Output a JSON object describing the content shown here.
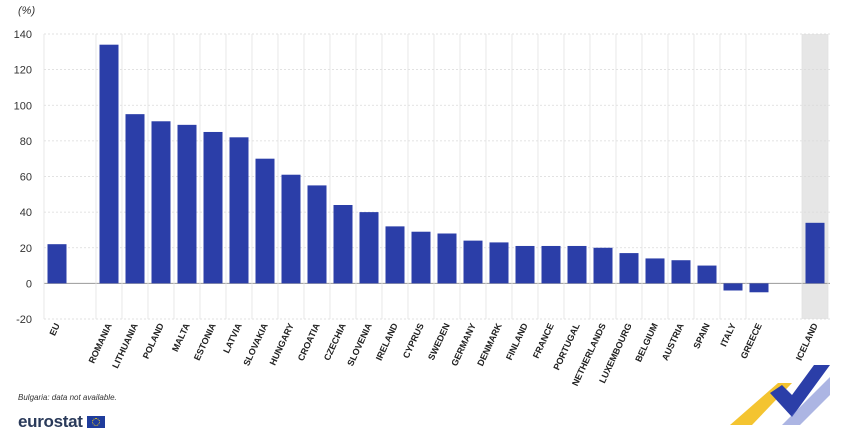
{
  "chart_data": {
    "type": "bar",
    "unit_label": "(%)",
    "categories": [
      "EU",
      "ROMANIA",
      "LITHUANIA",
      "POLAND",
      "MALTA",
      "ESTONIA",
      "LATVIA",
      "SLOVAKIA",
      "HUNGARY",
      "CROATIA",
      "CZECHIA",
      "SLOVENIA",
      "IRELAND",
      "CYPRUS",
      "SWEDEN",
      "GERMANY",
      "DENMARK",
      "FINLAND",
      "FRANCE",
      "PORTUGAL",
      "NETHERLANDS",
      "LUXEMBOURG",
      "BELGIUM",
      "AUSTRIA",
      "SPAIN",
      "ITALY",
      "GREECE",
      "ICELAND"
    ],
    "values": [
      22,
      134,
      95,
      91,
      89,
      85,
      82,
      70,
      61,
      55,
      44,
      40,
      32,
      29,
      28,
      24,
      23,
      21,
      21,
      21,
      20,
      17,
      14,
      13,
      10,
      -4,
      -5,
      34
    ],
    "ylim": [
      -20,
      140
    ],
    "yticks": [
      "140",
      "120",
      "100",
      "80",
      "60",
      "40",
      "20",
      "0",
      "-20"
    ],
    "grid": true,
    "bar_color": "#2b3ea8",
    "highlight_band_color": "#e6e6e6"
  },
  "footnote": "Bulgaria: data not available.",
  "logo": {
    "text": "eurostat",
    "icon": "eu-flag-icon"
  }
}
